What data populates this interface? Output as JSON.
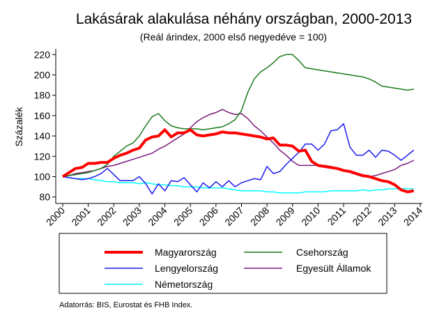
{
  "chart_data": {
    "type": "line",
    "title": "Lakásárak alakulása néhány országban, 2000-2013",
    "subtitle": "(Reál árindex, 2000 első negyedéve = 100)",
    "y_label": "Százalék",
    "source": "Adatorrás: BIS, Eurostat és FHB Index.",
    "x": [
      2000,
      2000.25,
      2000.5,
      2000.75,
      2001,
      2001.25,
      2001.5,
      2001.75,
      2002,
      2002.25,
      2002.5,
      2002.75,
      2003,
      2003.25,
      2003.5,
      2003.75,
      2004,
      2004.25,
      2004.5,
      2004.75,
      2005,
      2005.25,
      2005.5,
      2005.75,
      2006,
      2006.25,
      2006.5,
      2006.75,
      2007,
      2007.25,
      2007.5,
      2007.75,
      2008,
      2008.25,
      2008.5,
      2008.75,
      2009,
      2009.25,
      2009.5,
      2009.75,
      2010,
      2010.25,
      2010.5,
      2010.75,
      2011,
      2011.25,
      2011.5,
      2011.75,
      2012,
      2012.25,
      2012.5,
      2012.75,
      2013,
      2013.25,
      2013.5,
      2013.75
    ],
    "series": [
      {
        "name": "Magyarország",
        "color": "#ff0000",
        "width": 4,
        "values": [
          100,
          104,
          108,
          109,
          113,
          113,
          114,
          114,
          118,
          121,
          123,
          126,
          128,
          136,
          139,
          140,
          146,
          139,
          143,
          143,
          146,
          141,
          140,
          141,
          142,
          144,
          143,
          143,
          142,
          141,
          140,
          139,
          137,
          138,
          131,
          131,
          130,
          125,
          126,
          115,
          111,
          110,
          109,
          108,
          106,
          105,
          103,
          101,
          100,
          98,
          96,
          95,
          92,
          87,
          85,
          86
        ]
      },
      {
        "name": "Csehország",
        "color": "#1a7a1a",
        "width": 1.5,
        "values": [
          100,
          101,
          102,
          103,
          104,
          106,
          108,
          112,
          120,
          125,
          130,
          133,
          140,
          150,
          159,
          162,
          155,
          150,
          148,
          147,
          147,
          147,
          146,
          147,
          148,
          149,
          152,
          156,
          165,
          183,
          196,
          203,
          207,
          212,
          218,
          220,
          220,
          214,
          207,
          206,
          205,
          204,
          203,
          202,
          201,
          200,
          199,
          198,
          196,
          193,
          189,
          188,
          187,
          186,
          185,
          186
        ]
      },
      {
        "name": "Lengyelország",
        "color": "#1a1aee",
        "width": 1.5,
        "values": [
          100,
          99,
          98,
          97,
          98,
          100,
          103,
          108,
          102,
          96,
          96,
          96,
          100,
          93,
          83,
          93,
          86,
          96,
          95,
          99,
          92,
          85,
          94,
          89,
          95,
          90,
          96,
          90,
          94,
          96,
          98,
          97,
          110,
          103,
          105,
          112,
          118,
          124,
          132,
          132,
          126,
          132,
          145,
          146,
          152,
          129,
          121,
          121,
          126,
          119,
          126,
          125,
          121,
          116,
          121,
          126
        ]
      },
      {
        "name": "Egyesült Államok",
        "color": "#7a1a7a",
        "width": 1.5,
        "values": [
          100,
          101,
          103,
          104,
          105,
          106,
          108,
          110,
          111,
          113,
          115,
          117,
          119,
          121,
          123,
          127,
          130,
          134,
          138,
          142,
          148,
          154,
          158,
          161,
          163,
          166,
          163,
          161,
          162,
          157,
          150,
          145,
          139,
          133,
          126,
          121,
          115,
          111,
          111,
          111,
          111,
          111,
          110,
          108,
          106,
          104,
          102,
          100,
          100,
          101,
          103,
          105,
          107,
          111,
          113,
          116
        ]
      },
      {
        "name": "Németország",
        "color": "#00ffff",
        "width": 1.5,
        "values": [
          100,
          99,
          98,
          98,
          98,
          97,
          96,
          95,
          95,
          94,
          94,
          94,
          93,
          94,
          93,
          92,
          92,
          91,
          91,
          90,
          90,
          90,
          89,
          89,
          89,
          89,
          88,
          87,
          86,
          86,
          86,
          86,
          85,
          85,
          84,
          84,
          84,
          84,
          85,
          85,
          85,
          85,
          86,
          86,
          86,
          86,
          86,
          87,
          86,
          87,
          87,
          88,
          88,
          88,
          88,
          88
        ]
      }
    ],
    "xlim": [
      2000,
      2014
    ],
    "xticks": [
      2000,
      2001,
      2002,
      2003,
      2004,
      2005,
      2006,
      2007,
      2008,
      2009,
      2010,
      2011,
      2012,
      2013,
      2014
    ],
    "ylim": [
      75,
      225
    ],
    "yticks": [
      80,
      100,
      120,
      140,
      160,
      180,
      200,
      220
    ]
  }
}
